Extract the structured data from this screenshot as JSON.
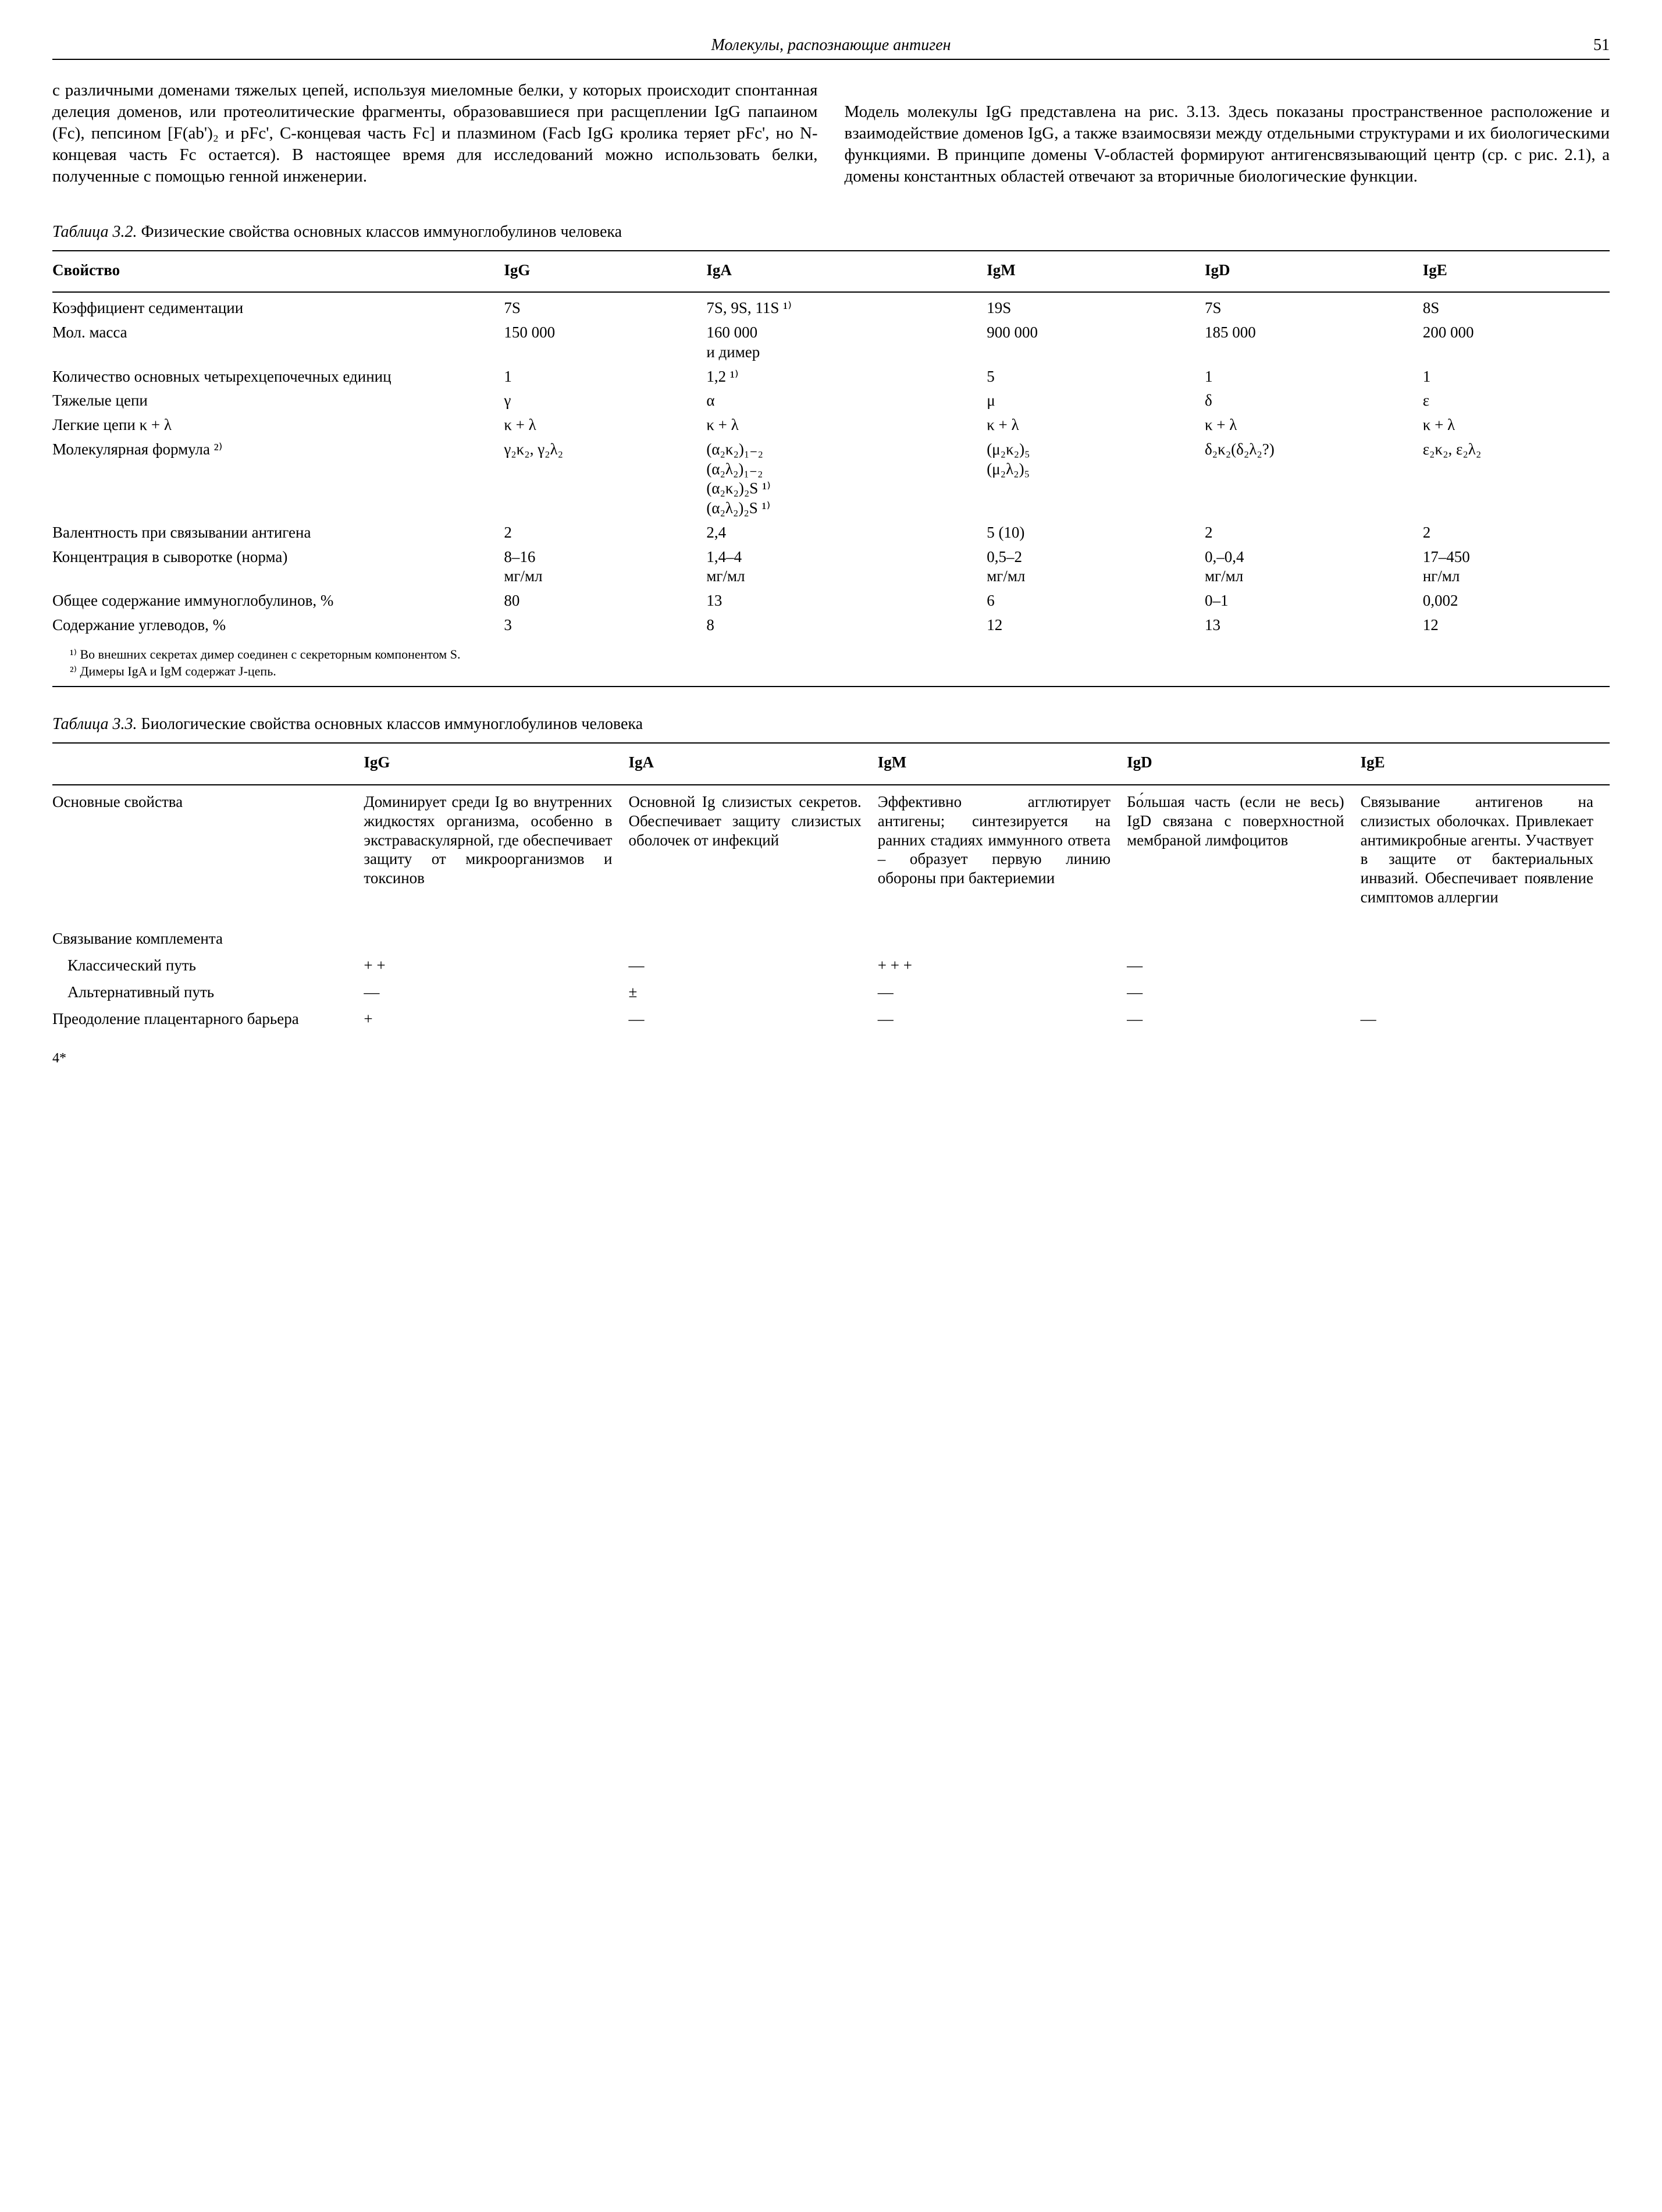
{
  "header": {
    "title": "Молекулы, распознающие антиген",
    "page": "51"
  },
  "paragraphs": {
    "left": "с различными доменами тяжелых цепей, используя миеломные белки, у которых происходит спонтанная делеция доменов, или протеолитические фрагменты, образовавшиеся при расщеплении IgG папаином (Fc), пепсином [F(ab')₂ и pFc', C-концевая часть Fc] и плазмином (Facb IgG кролика теряет pFc', но N-концевая часть Fc остается). В настоящее время для исследований можно использовать белки, полученные с помощью генной инженерии.",
    "right": "Модель молекулы IgG представлена на рис. 3.13. Здесь показаны пространственное расположение и взаимодействие доменов IgG, а также взаимосвязи между отдельными структурами и их биологическими функциями. В принципе домены V-областей формируют антигенсвязывающий центр (ср. с рис. 2.1), а домены константных областей отвечают за вторичные биологические функции."
  },
  "table32": {
    "caption_label": "Таблица 3.2.",
    "caption_text": "Физические свойства основных классов иммуноглобулинов человека",
    "columns": [
      "Свойство",
      "IgG",
      "IgA",
      "IgM",
      "IgD",
      "IgE"
    ],
    "rows": [
      [
        "Коэффициент седиментации",
        "7S",
        "7S, 9S, 11S ¹⁾",
        "19S",
        "7S",
        "8S"
      ],
      [
        "Мол. масса",
        "150 000",
        "160 000\nи димер",
        "900 000",
        "185 000",
        "200 000"
      ],
      [
        "Количество основных четырехцепочечных единиц",
        "1",
        "1,2 ¹⁾",
        "5",
        "1",
        "1"
      ],
      [
        "Тяжелые цепи",
        "γ",
        "α",
        "μ",
        "δ",
        "ε"
      ],
      [
        "Легкие цепи κ + λ",
        "κ + λ",
        "κ + λ",
        "κ + λ",
        "κ + λ",
        "κ + λ"
      ],
      [
        "Молекулярная формула ²⁾",
        "γ₂κ₂, γ₂λ₂",
        "(α₂κ₂)₁₋₂\n(α₂λ₂)₁₋₂\n(α₂κ₂)₂S ¹⁾\n(α₂λ₂)₂S ¹⁾",
        "(μ₂κ₂)₅\n(μ₂λ₂)₅",
        "δ₂κ₂(δ₂λ₂?)",
        "ε₂κ₂, ε₂λ₂"
      ],
      [
        "Валентность при связывании антигена",
        "2",
        "2,4",
        "5 (10)",
        "2",
        "2"
      ],
      [
        "Концентрация в сыворотке (норма)",
        "8–16\nмг/мл",
        "1,4–4\nмг/мл",
        "0,5–2\nмг/мл",
        "0,–0,4\nмг/мл",
        "17–450\nнг/мл"
      ],
      [
        "Общее содержание иммуноглобулинов, %",
        "80",
        "13",
        "6",
        "0–1",
        "0,002"
      ],
      [
        "Содержание углеводов, %",
        "3",
        "8",
        "12",
        "13",
        "12"
      ]
    ],
    "footnotes": [
      "¹⁾ Во внешних секретах димер соединен с секреторным компонентом S.",
      "²⁾ Димеры IgA и IgM содержат J-цепь."
    ],
    "col_widths": [
      "29%",
      "13%",
      "18%",
      "14%",
      "14%",
      "12%"
    ]
  },
  "table33": {
    "caption_label": "Таблица 3.3.",
    "caption_text": "Биологические свойства основных классов иммуноглобулинов человека",
    "columns": [
      "",
      "IgG",
      "IgA",
      "IgM",
      "IgD",
      "IgE"
    ],
    "desc_row_label": "Основные свойства",
    "desc_row": [
      "Доминирует среди Ig во внутренних жидкостях организма, особенно в экстраваскулярной, где обеспечивает защиту от микроорганизмов и токсинов",
      "Основной Ig слизистых секретов. Обеспечивает защиту слизистых оболочек от инфекций",
      "Эффективно агглютирует антигены; синтезируется на ранних стадиях иммунного ответа – образует первую линию обороны при бактериемии",
      "Бо́льшая часть (если не весь) IgD связана с поверхностной мембраной лимфоцитов",
      "Связывание антигенов на слизистых оболочках. Привлекает антимикробные агенты. Участвует в защите от бактериальных инвазий. Обеспечивает появление симптомов аллергии"
    ],
    "rows": [
      [
        "Связывание комплемента",
        "",
        "",
        "",
        "",
        ""
      ],
      [
        "Классический путь",
        "+ +",
        "—",
        "+ + +",
        "—",
        ""
      ],
      [
        "Альтернативный путь",
        "—",
        "±",
        "—",
        "—",
        ""
      ],
      [
        "Преодоление плацентарного барьера",
        "+",
        "—",
        "—",
        "—",
        "—"
      ]
    ],
    "col_widths": [
      "20%",
      "17%",
      "16%",
      "16%",
      "15%",
      "16%"
    ]
  },
  "signature": "4*"
}
